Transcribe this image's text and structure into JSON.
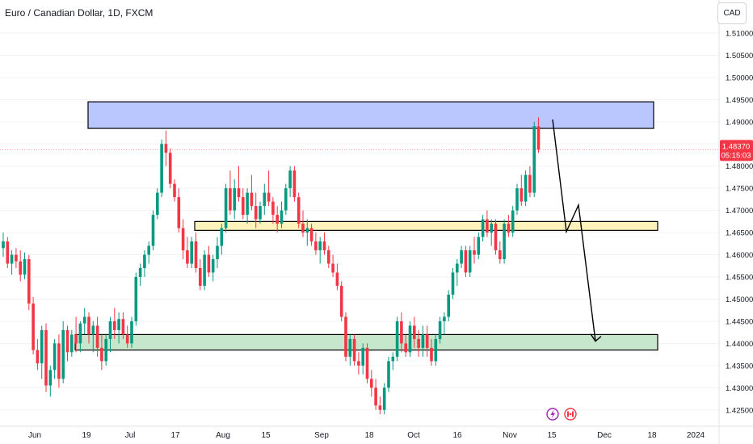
{
  "header": {
    "title": "Euro / Canadian Dollar, 1D, FXCM",
    "currency": "CAD"
  },
  "price_label": {
    "value": "1.48370",
    "countdown": "05:15:03",
    "color": "#f23645"
  },
  "colors": {
    "up": "#089981",
    "down": "#f23645",
    "zone_top": "#aebdff",
    "zone_mid": "#fff1b0",
    "zone_bottom": "#bde3c3"
  },
  "icons": [
    "lightning-event-icon",
    "flag-event-icon"
  ],
  "chart_data": {
    "type": "candlestick",
    "symbol": "EUR/CAD",
    "interval": "1D",
    "source": "FXCM",
    "x_ticks": [
      "Jun",
      "19",
      "Jul",
      "17",
      "Aug",
      "15",
      "Sep",
      "18",
      "Oct",
      "16",
      "Nov",
      "15",
      "Dec",
      "18",
      "2024"
    ],
    "y_ticks": [
      "1.51000",
      "1.50500",
      "1.50000",
      "1.49500",
      "1.49000",
      "1.48500",
      "1.48000",
      "1.47500",
      "1.47000",
      "1.46500",
      "1.46000",
      "1.45500",
      "1.45000",
      "1.44500",
      "1.44000",
      "1.43500",
      "1.43000",
      "1.42500"
    ],
    "ylim": [
      1.4235,
      1.512
    ],
    "last_price": 1.4837,
    "candles": [
      [
        1.4615,
        1.465,
        1.4595,
        1.463
      ],
      [
        1.463,
        1.464,
        1.457,
        1.458
      ],
      [
        1.458,
        1.461,
        1.4555,
        1.46
      ],
      [
        1.46,
        1.4615,
        1.457,
        1.4585
      ],
      [
        1.4585,
        1.461,
        1.454,
        1.4555
      ],
      [
        1.4555,
        1.4605,
        1.4545,
        1.459
      ],
      [
        1.459,
        1.46,
        1.4475,
        1.449
      ],
      [
        1.449,
        1.4505,
        1.4375,
        1.4385
      ],
      [
        1.4385,
        1.441,
        1.434,
        1.4355
      ],
      [
        1.4355,
        1.444,
        1.432,
        1.443
      ],
      [
        1.443,
        1.4445,
        1.429,
        1.4305
      ],
      [
        1.4305,
        1.435,
        1.428,
        1.434
      ],
      [
        1.434,
        1.441,
        1.432,
        1.44
      ],
      [
        1.44,
        1.442,
        1.43,
        1.432
      ],
      [
        1.432,
        1.445,
        1.431,
        1.443
      ],
      [
        1.443,
        1.444,
        1.436,
        1.438
      ],
      [
        1.438,
        1.443,
        1.437,
        1.442
      ],
      [
        1.442,
        1.446,
        1.438,
        1.44
      ],
      [
        1.44,
        1.445,
        1.438,
        1.4445
      ],
      [
        1.4445,
        1.448,
        1.442,
        1.446
      ],
      [
        1.446,
        1.447,
        1.44,
        1.442
      ],
      [
        1.442,
        1.445,
        1.438,
        1.444
      ],
      [
        1.444,
        1.446,
        1.437,
        1.439
      ],
      [
        1.439,
        1.442,
        1.434,
        1.436
      ],
      [
        1.436,
        1.442,
        1.435,
        1.441
      ],
      [
        1.441,
        1.446,
        1.438,
        1.445
      ],
      [
        1.445,
        1.448,
        1.441,
        1.443
      ],
      [
        1.443,
        1.447,
        1.44,
        1.4455
      ],
      [
        1.4455,
        1.447,
        1.441,
        1.442
      ],
      [
        1.442,
        1.444,
        1.439,
        1.44
      ],
      [
        1.44,
        1.446,
        1.439,
        1.445
      ],
      [
        1.445,
        1.456,
        1.444,
        1.455
      ],
      [
        1.455,
        1.458,
        1.453,
        1.457
      ],
      [
        1.457,
        1.461,
        1.455,
        1.46
      ],
      [
        1.46,
        1.463,
        1.458,
        1.462
      ],
      [
        1.462,
        1.47,
        1.461,
        1.469
      ],
      [
        1.469,
        1.475,
        1.468,
        1.474
      ],
      [
        1.474,
        1.486,
        1.473,
        1.485
      ],
      [
        1.485,
        1.488,
        1.48,
        1.483
      ],
      [
        1.483,
        1.484,
        1.475,
        1.476
      ],
      [
        1.476,
        1.477,
        1.472,
        1.473
      ],
      [
        1.473,
        1.475,
        1.465,
        1.466
      ],
      [
        1.466,
        1.468,
        1.459,
        1.461
      ],
      [
        1.461,
        1.464,
        1.457,
        1.458
      ],
      [
        1.458,
        1.464,
        1.457,
        1.463
      ],
      [
        1.463,
        1.465,
        1.456,
        1.457
      ],
      [
        1.457,
        1.459,
        1.452,
        1.453
      ],
      [
        1.453,
        1.461,
        1.452,
        1.46
      ],
      [
        1.46,
        1.462,
        1.455,
        1.456
      ],
      [
        1.456,
        1.46,
        1.454,
        1.459
      ],
      [
        1.459,
        1.464,
        1.457,
        1.462
      ],
      [
        1.462,
        1.467,
        1.46,
        1.466
      ],
      [
        1.466,
        1.476,
        1.465,
        1.475
      ],
      [
        1.475,
        1.479,
        1.469,
        1.47
      ],
      [
        1.47,
        1.477,
        1.468,
        1.475
      ],
      [
        1.475,
        1.48,
        1.472,
        1.473
      ],
      [
        1.473,
        1.475,
        1.468,
        1.469
      ],
      [
        1.469,
        1.475,
        1.467,
        1.474
      ],
      [
        1.474,
        1.478,
        1.47,
        1.471
      ],
      [
        1.471,
        1.474,
        1.466,
        1.468
      ],
      [
        1.468,
        1.472,
        1.467,
        1.471
      ],
      [
        1.471,
        1.476,
        1.469,
        1.474
      ],
      [
        1.474,
        1.479,
        1.471,
        1.472
      ],
      [
        1.472,
        1.473,
        1.467,
        1.469
      ],
      [
        1.469,
        1.471,
        1.465,
        1.467
      ],
      [
        1.467,
        1.472,
        1.466,
        1.47
      ],
      [
        1.47,
        1.476,
        1.469,
        1.475
      ],
      [
        1.475,
        1.48,
        1.473,
        1.479
      ],
      [
        1.479,
        1.48,
        1.472,
        1.473
      ],
      [
        1.473,
        1.474,
        1.466,
        1.467
      ],
      [
        1.467,
        1.47,
        1.464,
        1.465
      ],
      [
        1.465,
        1.468,
        1.462,
        1.466
      ],
      [
        1.466,
        1.467,
        1.462,
        1.463
      ],
      [
        1.463,
        1.465,
        1.46,
        1.461
      ],
      [
        1.461,
        1.464,
        1.458,
        1.463
      ],
      [
        1.463,
        1.465,
        1.46,
        1.461
      ],
      [
        1.461,
        1.462,
        1.457,
        1.458
      ],
      [
        1.458,
        1.46,
        1.455,
        1.456
      ],
      [
        1.456,
        1.458,
        1.452,
        1.453
      ],
      [
        1.453,
        1.454,
        1.445,
        1.446
      ],
      [
        1.446,
        1.447,
        1.436,
        1.437
      ],
      [
        1.437,
        1.442,
        1.435,
        1.441
      ],
      [
        1.441,
        1.442,
        1.435,
        1.436
      ],
      [
        1.436,
        1.438,
        1.433,
        1.435
      ],
      [
        1.435,
        1.44,
        1.433,
        1.439
      ],
      [
        1.439,
        1.44,
        1.431,
        1.432
      ],
      [
        1.432,
        1.434,
        1.428,
        1.43
      ],
      [
        1.43,
        1.432,
        1.425,
        1.426
      ],
      [
        1.426,
        1.428,
        1.424,
        1.425
      ],
      [
        1.425,
        1.431,
        1.424,
        1.43
      ],
      [
        1.43,
        1.437,
        1.429,
        1.436
      ],
      [
        1.436,
        1.438,
        1.434,
        1.437
      ],
      [
        1.437,
        1.446,
        1.436,
        1.445
      ],
      [
        1.445,
        1.447,
        1.438,
        1.44
      ],
      [
        1.44,
        1.442,
        1.437,
        1.438
      ],
      [
        1.438,
        1.445,
        1.437,
        1.444
      ],
      [
        1.444,
        1.446,
        1.439,
        1.441
      ],
      [
        1.441,
        1.443,
        1.437,
        1.439
      ],
      [
        1.439,
        1.444,
        1.437,
        1.442
      ],
      [
        1.442,
        1.444,
        1.437,
        1.439
      ],
      [
        1.439,
        1.441,
        1.435,
        1.436
      ],
      [
        1.436,
        1.442,
        1.435,
        1.441
      ],
      [
        1.441,
        1.446,
        1.44,
        1.445
      ],
      [
        1.445,
        1.447,
        1.442,
        1.446
      ],
      [
        1.446,
        1.452,
        1.445,
        1.451
      ],
      [
        1.451,
        1.457,
        1.45,
        1.456
      ],
      [
        1.456,
        1.459,
        1.453,
        1.458
      ],
      [
        1.458,
        1.462,
        1.457,
        1.461
      ],
      [
        1.461,
        1.462,
        1.455,
        1.456
      ],
      [
        1.456,
        1.462,
        1.455,
        1.461
      ],
      [
        1.461,
        1.464,
        1.458,
        1.46
      ],
      [
        1.46,
        1.465,
        1.459,
        1.464
      ],
      [
        1.464,
        1.469,
        1.463,
        1.468
      ],
      [
        1.468,
        1.47,
        1.464,
        1.465
      ],
      [
        1.465,
        1.468,
        1.462,
        1.467
      ],
      [
        1.467,
        1.468,
        1.46,
        1.461
      ],
      [
        1.461,
        1.463,
        1.458,
        1.459
      ],
      [
        1.459,
        1.468,
        1.458,
        1.467
      ],
      [
        1.467,
        1.469,
        1.464,
        1.465
      ],
      [
        1.465,
        1.471,
        1.464,
        1.47
      ],
      [
        1.47,
        1.476,
        1.469,
        1.475
      ],
      [
        1.475,
        1.478,
        1.471,
        1.472
      ],
      [
        1.472,
        1.479,
        1.471,
        1.478
      ],
      [
        1.478,
        1.48,
        1.473,
        1.474
      ],
      [
        1.474,
        1.49,
        1.473,
        1.489
      ],
      [
        1.489,
        1.491,
        1.483,
        1.4837
      ]
    ],
    "annotations": [
      {
        "type": "rectangle",
        "price_top": 1.4945,
        "price_bottom": 1.4885,
        "color": "#aebdff"
      },
      {
        "type": "rectangle",
        "price_top": 1.4675,
        "price_bottom": 1.4655,
        "color": "#fff1b0"
      },
      {
        "type": "rectangle",
        "price_top": 1.442,
        "price_bottom": 1.4385,
        "color": "#bde3c3"
      },
      {
        "type": "projection_path",
        "prices": [
          1.4905,
          1.4652,
          1.4712,
          1.4405
        ],
        "note": "hand-drawn forecast arrow"
      }
    ]
  }
}
